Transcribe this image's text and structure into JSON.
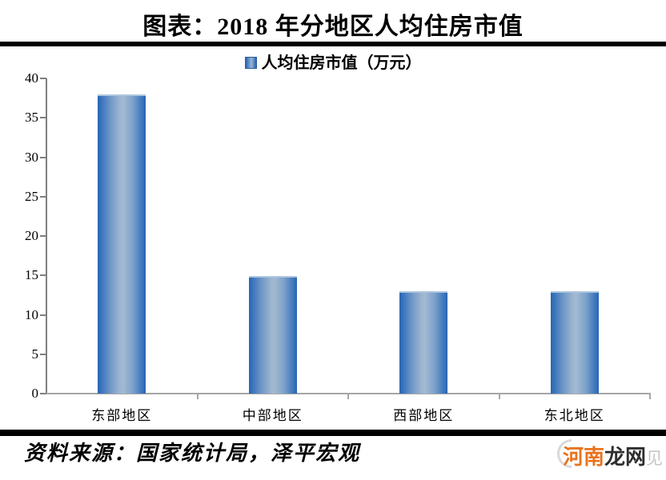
{
  "header": {
    "title": "图表：2018 年分地区人均住房市值"
  },
  "legend": {
    "label": "人均住房市值（万元）",
    "marker_color": "#3b76bd"
  },
  "chart_data": {
    "type": "bar",
    "title": "图表：2018 年分地区人均住房市值",
    "categories": [
      "东部地区",
      "中部地区",
      "西部地区",
      "东北地区"
    ],
    "series": [
      {
        "name": "人均住房市值（万元）",
        "values": [
          38.0,
          14.9,
          13.0,
          13.0
        ]
      }
    ],
    "xlabel": "",
    "ylabel": "",
    "ylim": [
      0,
      40
    ],
    "ytick_step": 5,
    "grid": false,
    "legend_position": "top-center",
    "bar_color_edge": "#2765b3",
    "bar_color_center": "#9cb5cf"
  },
  "footer": {
    "source": "资料来源：国家统计局，泽平宏观"
  },
  "watermark": {
    "prefix": "河南",
    "middle": "龙网",
    "suffix": "见",
    "prefix_color": "#e87320",
    "middle_color": "#2f2f2f",
    "suffix_color": "#c6c6c6"
  }
}
